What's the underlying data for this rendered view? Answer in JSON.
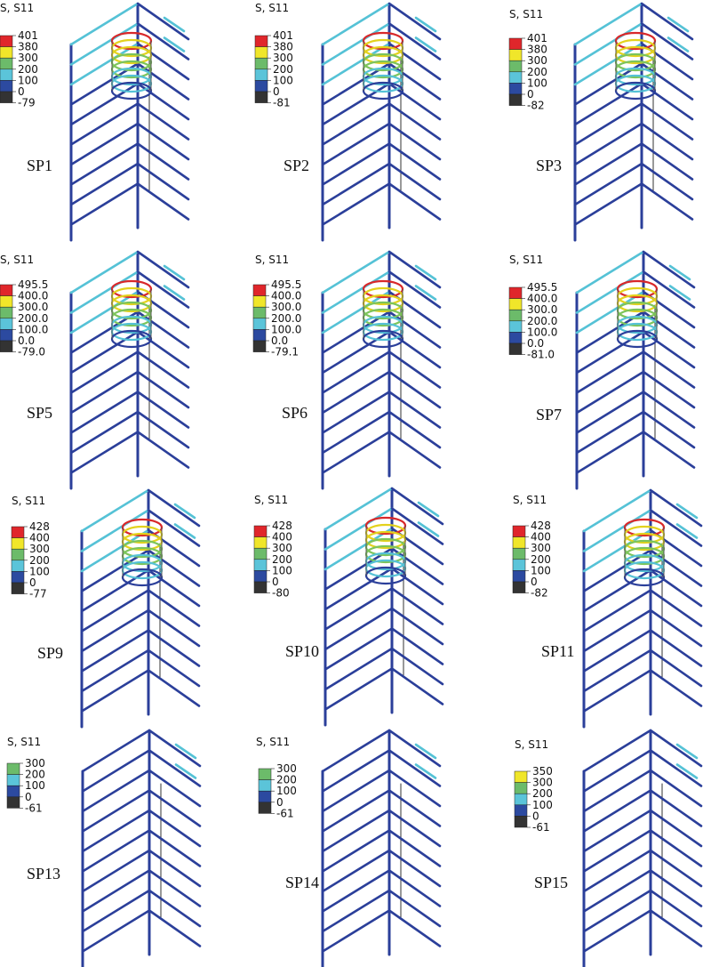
{
  "legend_title": "S, S11",
  "colors": {
    "frame": "#2b3f9a",
    "bar_light": "#55c2d6",
    "red": "#e0262b",
    "yellow": "#f0e62a",
    "green": "#6cbb6a",
    "light_blue": "#5bc4d9",
    "blue": "#2c4aa0",
    "dark": "#333333",
    "hoop_green": "#7cc45a",
    "hoop_yellow": "#e3d21d",
    "hoop_red": "#d8282a"
  },
  "panels": [
    {
      "label": "SP1",
      "legend": [
        "401",
        "380",
        "300",
        "200",
        "100",
        "0",
        "-79"
      ],
      "swatches": [
        "red",
        "yellow",
        "green",
        "light_blue",
        "blue",
        "dark"
      ],
      "spiral": true
    },
    {
      "label": "SP2",
      "legend": [
        "401",
        "380",
        "300",
        "200",
        "100",
        "0",
        "-81"
      ],
      "swatches": [
        "red",
        "yellow",
        "green",
        "light_blue",
        "blue",
        "dark"
      ],
      "spiral": true
    },
    {
      "label": "SP3",
      "legend": [
        "401",
        "380",
        "300",
        "200",
        "100",
        "0",
        "-82"
      ],
      "swatches": [
        "red",
        "yellow",
        "green",
        "light_blue",
        "blue",
        "dark"
      ],
      "spiral": true
    },
    {
      "label": "SP5",
      "legend": [
        "495.5",
        "400.0",
        "300.0",
        "200.0",
        "100.0",
        "0.0",
        "-79.0"
      ],
      "swatches": [
        "red",
        "yellow",
        "green",
        "light_blue",
        "blue",
        "dark"
      ],
      "spiral": true
    },
    {
      "label": "SP6",
      "legend": [
        "495.5",
        "400.0",
        "300.0",
        "200.0",
        "100.0",
        "0.0",
        "-79.1"
      ],
      "swatches": [
        "red",
        "yellow",
        "green",
        "light_blue",
        "blue",
        "dark"
      ],
      "spiral": true
    },
    {
      "label": "SP7",
      "legend": [
        "495.5",
        "400.0",
        "300.0",
        "200.0",
        "100.0",
        "0.0",
        "-81.0"
      ],
      "swatches": [
        "red",
        "yellow",
        "green",
        "light_blue",
        "blue",
        "dark"
      ],
      "spiral": true
    },
    {
      "label": "SP9",
      "legend": [
        "428",
        "400",
        "300",
        "200",
        "100",
        "0",
        "-77"
      ],
      "swatches": [
        "red",
        "yellow",
        "green",
        "light_blue",
        "blue",
        "dark"
      ],
      "spiral": true
    },
    {
      "label": "SP10",
      "legend": [
        "428",
        "400",
        "300",
        "200",
        "100",
        "0",
        "-80"
      ],
      "swatches": [
        "red",
        "yellow",
        "green",
        "light_blue",
        "blue",
        "dark"
      ],
      "spiral": true
    },
    {
      "label": "SP11",
      "legend": [
        "428",
        "400",
        "300",
        "200",
        "100",
        "0",
        "-82"
      ],
      "swatches": [
        "red",
        "yellow",
        "green",
        "light_blue",
        "blue",
        "dark"
      ],
      "spiral": true
    },
    {
      "label": "SP13",
      "legend": [
        "300",
        "200",
        "100",
        "0",
        "-61"
      ],
      "swatches": [
        "green",
        "light_blue",
        "blue",
        "dark"
      ],
      "spiral": false
    },
    {
      "label": "SP14",
      "legend": [
        "300",
        "200",
        "100",
        "0",
        "-61"
      ],
      "swatches": [
        "green",
        "light_blue",
        "blue",
        "dark"
      ],
      "spiral": false
    },
    {
      "label": "SP15",
      "legend": [
        "350",
        "300",
        "200",
        "100",
        "0",
        "-61"
      ],
      "swatches": [
        "yellow",
        "green",
        "light_blue",
        "blue",
        "dark"
      ],
      "spiral": false
    }
  ]
}
